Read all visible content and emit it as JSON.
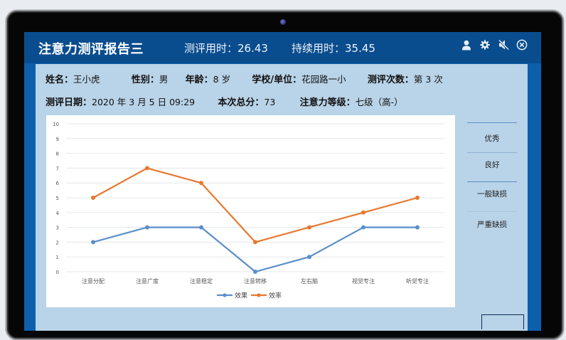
{
  "window": {
    "title": "注意力测评报告三",
    "eval_time_label": "测评用时：",
    "eval_time_value": "26.43",
    "sustain_time_label": "持续用时：",
    "sustain_time_value": "35.45",
    "icons": [
      "user-icon",
      "gear-icon",
      "mute-icon",
      "close-icon"
    ]
  },
  "profile": {
    "name_label": "姓名：",
    "name_value": "王小虎",
    "gender_label": "性别：",
    "gender_value": "男",
    "age_label": "年龄：",
    "age_value": "8 岁",
    "school_label": "学校/单位：",
    "school_value": "花园路一小",
    "count_label": "测评次数：",
    "count_value": "第 3 次",
    "date_label": "测评日期：",
    "date_value": "2020 年 3 月 5 日 09:29",
    "score_label": "本次总分：",
    "score_value": "73",
    "level_label": "注意力等级：",
    "level_value": "七级（高-）"
  },
  "levels": {
    "excellent": "优秀",
    "good": "良好",
    "mild": "一般缺损",
    "severe": "严重缺损"
  },
  "colors": {
    "effect": "#5b8fc9",
    "efficiency": "#e8782f",
    "titlebar": "#0a4d8e",
    "panel": "#b9d3e8"
  },
  "chart_data": {
    "type": "line",
    "title": "",
    "xlabel": "",
    "ylabel": "",
    "categories": [
      "注意分配",
      "注意广度",
      "注意稳定",
      "注意转移",
      "左右脑",
      "视觉专注",
      "听觉专注"
    ],
    "series": [
      {
        "name": "效果",
        "color": "#5b8fc9",
        "values": [
          2,
          3,
          3,
          0,
          1,
          3,
          3
        ]
      },
      {
        "name": "效率",
        "color": "#e8782f",
        "values": [
          5,
          7,
          6,
          2,
          3,
          4,
          5
        ]
      }
    ],
    "yticks": [
      "0",
      "1",
      "2",
      "3",
      "4",
      "5",
      "6",
      "7",
      "8",
      "9",
      "10"
    ],
    "ylim": [
      0,
      10
    ],
    "grid": true,
    "legend_position": "bottom"
  }
}
